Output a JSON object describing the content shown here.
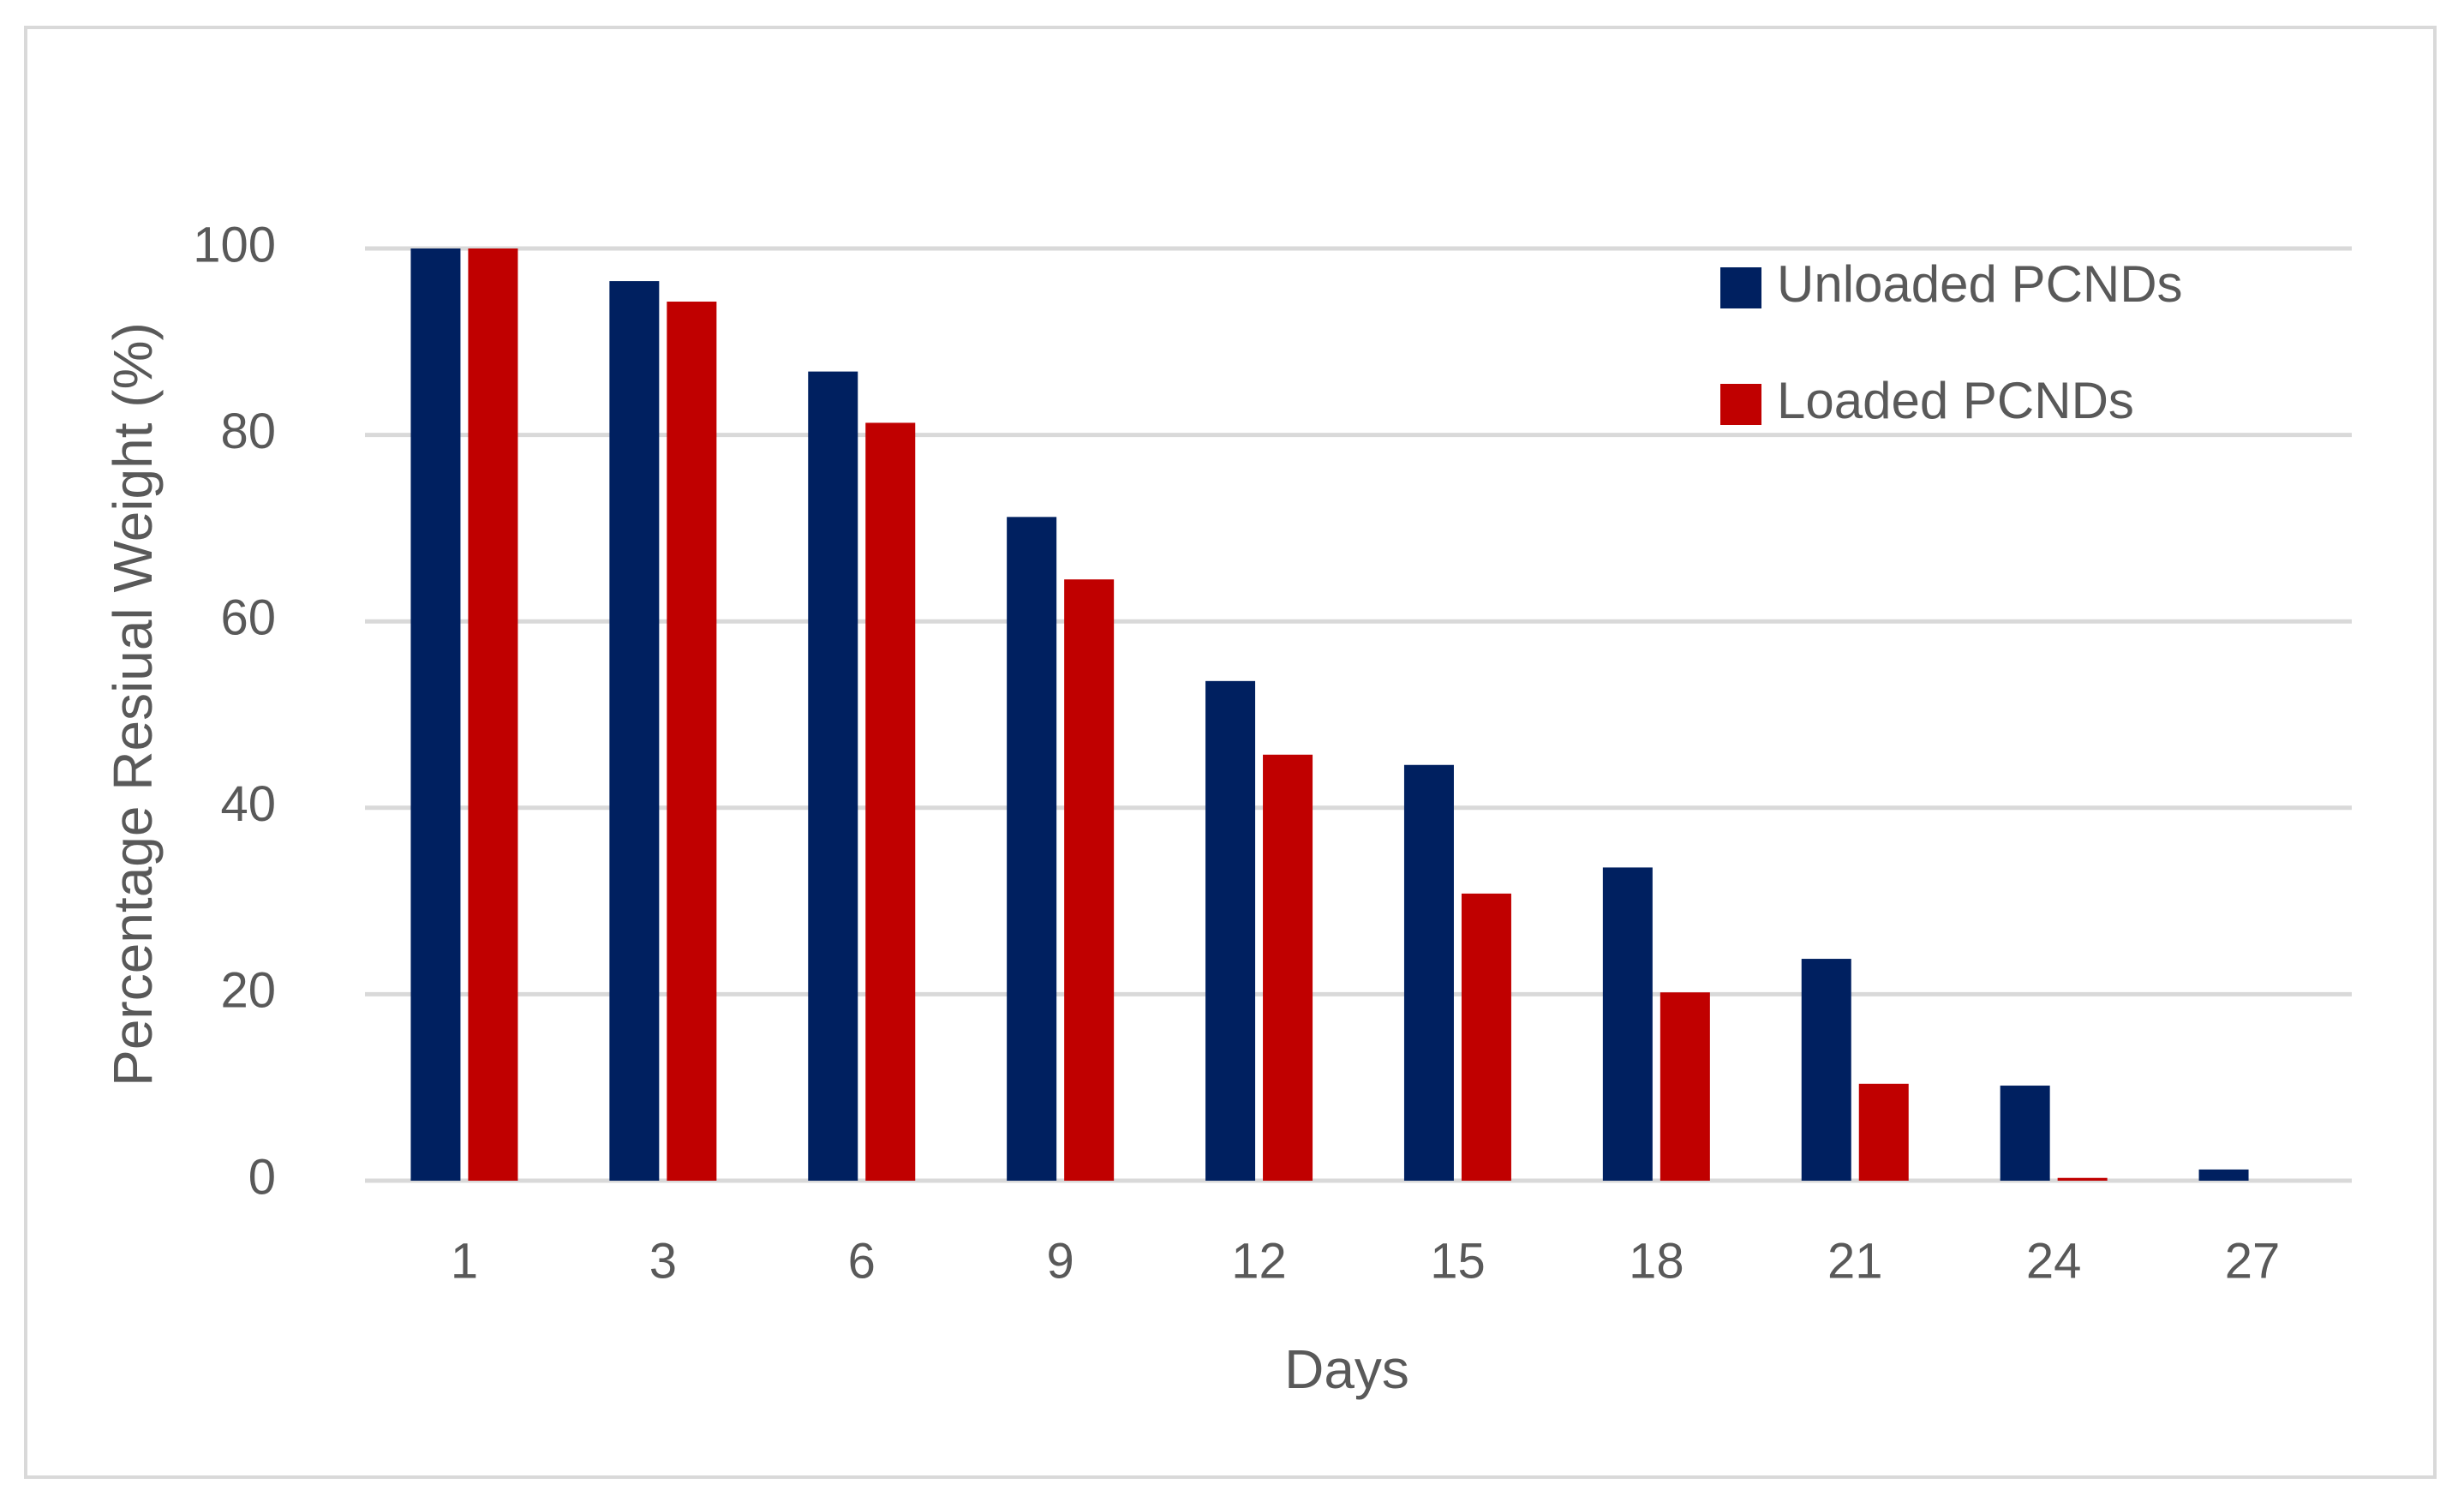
{
  "chart_data": {
    "type": "bar",
    "title": "",
    "xlabel": "Days",
    "ylabel": "Percentage Resiual Weight (%)",
    "categories": [
      "1",
      "3",
      "6",
      "9",
      "12",
      "15",
      "18",
      "21",
      "24",
      "27"
    ],
    "ylim": [
      0,
      100
    ],
    "yticks": [
      "0",
      "20",
      "40",
      "60",
      "80",
      "100"
    ],
    "grid": true,
    "legend_position": "top-right",
    "series": [
      {
        "name": "Unloaded PCNDs",
        "color": "#002060",
        "values": [
          100,
          96.5,
          86.8,
          71.2,
          53.6,
          44.6,
          33.6,
          23.8,
          10.2,
          1.2
        ]
      },
      {
        "name": "Loaded PCNDs",
        "color": "#c00000",
        "values": [
          100,
          94.3,
          81.3,
          64.5,
          45.7,
          30.8,
          20.2,
          10.4,
          0.3,
          0
        ]
      }
    ]
  }
}
